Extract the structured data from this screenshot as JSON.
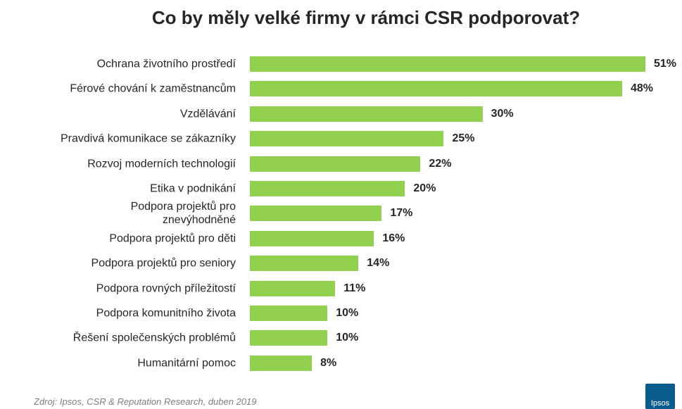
{
  "chart_data": {
    "type": "bar",
    "orientation": "horizontal",
    "title": "Co by měly velké firmy v rámci CSR podporovat?",
    "categories": [
      "Ochrana životního prostředí",
      "Férové chování k zaměstnancům",
      "Vzdělávání",
      "Pravdivá komunikace se zákazníky",
      "Rozvoj moderních technologií",
      "Etika v podnikání",
      "Podpora projektů pro\nznevýhodněné",
      "Podpora projektů pro děti",
      "Podpora projektů pro seniory",
      "Podpora rovných příležitostí",
      "Podpora komunitního života",
      "Řešení společenských problémů",
      "Humanitární pomoc"
    ],
    "values": [
      51,
      48,
      30,
      25,
      22,
      20,
      17,
      16,
      14,
      11,
      10,
      10,
      8
    ],
    "value_labels": [
      "51%",
      "48%",
      "30%",
      "25%",
      "22%",
      "20%",
      "17%",
      "16%",
      "14%",
      "11%",
      "10%",
      "10%",
      "8%"
    ],
    "color": "#92d050",
    "source": "Zdroj: Ipsos, CSR & Reputation Research, duben 2019",
    "logo": "Ipsos"
  }
}
